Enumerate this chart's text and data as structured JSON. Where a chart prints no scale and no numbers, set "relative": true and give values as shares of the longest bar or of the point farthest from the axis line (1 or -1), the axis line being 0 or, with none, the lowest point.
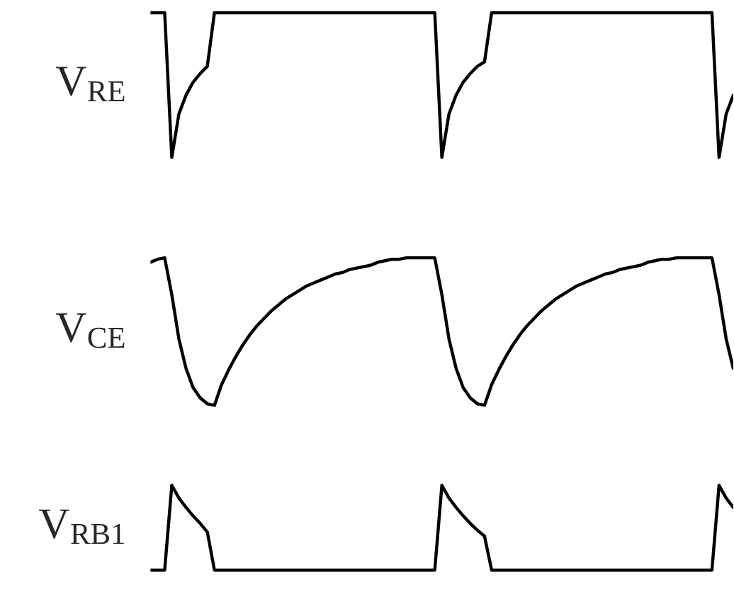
{
  "chart_data": [
    {
      "type": "line",
      "relative": true,
      "ylabel": "V$_{RE}$",
      "categories": [
        null,
        null,
        null,
        null,
        null,
        null,
        null,
        null,
        null,
        null,
        null,
        null,
        null,
        null,
        null,
        null,
        null,
        null,
        null,
        null,
        null,
        null,
        null,
        null,
        null,
        null,
        null,
        null,
        null,
        null,
        null,
        null,
        null,
        null,
        null,
        null,
        null,
        null,
        null,
        null,
        null,
        null,
        null,
        null,
        null,
        null,
        null,
        null,
        null,
        null,
        null,
        null,
        null,
        null,
        null,
        null,
        null,
        null,
        null,
        null,
        null,
        null,
        null,
        null,
        null,
        null,
        null,
        null,
        null,
        null,
        null,
        null,
        null,
        null,
        null,
        null,
        null,
        null,
        null,
        null,
        null,
        null,
        null
      ],
      "series": [
        {
          "color": "#000000",
          "values": [
            1,
            1,
            1,
            0,
            0.3,
            0.43,
            0.52,
            0.58,
            0.63,
            1,
            1,
            1,
            1,
            1,
            1,
            1,
            1,
            1,
            1,
            1,
            1,
            1,
            1,
            1,
            1,
            1,
            1,
            1,
            1,
            1,
            1,
            1,
            1,
            1,
            1,
            1,
            1,
            1,
            1,
            1,
            1,
            0,
            0.3,
            0.43,
            0.52,
            0.58,
            0.63,
            0.66,
            1,
            1,
            1,
            1,
            1,
            1,
            1,
            1,
            1,
            1,
            1,
            1,
            1,
            1,
            1,
            1,
            1,
            1,
            1,
            1,
            1,
            1,
            1,
            1,
            1,
            1,
            1,
            1,
            1,
            1,
            1,
            1,
            0,
            0.3,
            0.43
          ]
        }
      ]
    },
    {
      "type": "line",
      "relative": true,
      "ylabel": "V$_{CE}$",
      "categories": [
        null,
        null,
        null,
        null,
        null,
        null,
        null,
        null,
        null,
        null,
        null,
        null,
        null,
        null,
        null,
        null,
        null,
        null,
        null,
        null,
        null,
        null,
        null,
        null,
        null,
        null,
        null,
        null,
        null,
        null,
        null,
        null,
        null,
        null,
        null,
        null,
        null,
        null,
        null,
        null,
        null,
        null,
        null,
        null,
        null,
        null,
        null,
        null,
        null,
        null,
        null,
        null,
        null,
        null,
        null,
        null,
        null,
        null,
        null,
        null,
        null,
        null,
        null,
        null,
        null,
        null,
        null,
        null,
        null,
        null,
        null,
        null,
        null,
        null,
        null,
        null,
        null,
        null,
        null,
        null,
        null,
        null,
        null
      ],
      "series": [
        {
          "color": "#000000",
          "values": [
            0.97,
            0.99,
            1,
            0.75,
            0.45,
            0.25,
            0.12,
            0.05,
            0.01,
            0,
            0.14,
            0.24,
            0.33,
            0.41,
            0.48,
            0.54,
            0.59,
            0.64,
            0.68,
            0.72,
            0.75,
            0.78,
            0.81,
            0.83,
            0.85,
            0.87,
            0.89,
            0.9,
            0.92,
            0.93,
            0.94,
            0.95,
            0.97,
            0.98,
            0.99,
            0.99,
            1,
            1,
            1,
            1,
            1,
            0.75,
            0.45,
            0.25,
            0.12,
            0.05,
            0.01,
            0,
            0.14,
            0.24,
            0.33,
            0.41,
            0.48,
            0.54,
            0.59,
            0.64,
            0.68,
            0.72,
            0.75,
            0.78,
            0.81,
            0.83,
            0.85,
            0.87,
            0.89,
            0.9,
            0.92,
            0.93,
            0.94,
            0.95,
            0.97,
            0.98,
            0.99,
            0.99,
            1,
            1,
            1,
            1,
            1,
            1,
            0.75,
            0.45,
            0.25
          ]
        }
      ]
    },
    {
      "type": "line",
      "relative": true,
      "ylabel": "V$_{RB1}$",
      "categories": [
        null,
        null,
        null,
        null,
        null,
        null,
        null,
        null,
        null,
        null,
        null,
        null,
        null,
        null,
        null,
        null,
        null,
        null,
        null,
        null,
        null,
        null,
        null,
        null,
        null,
        null,
        null,
        null,
        null,
        null,
        null,
        null,
        null,
        null,
        null,
        null,
        null,
        null,
        null,
        null,
        null,
        null,
        null,
        null,
        null,
        null,
        null,
        null,
        null,
        null,
        null,
        null,
        null,
        null,
        null,
        null,
        null,
        null,
        null,
        null,
        null,
        null,
        null,
        null,
        null,
        null,
        null,
        null,
        null,
        null,
        null,
        null,
        null,
        null,
        null,
        null,
        null,
        null,
        null,
        null,
        null,
        null,
        null
      ],
      "series": [
        {
          "color": "#000000",
          "values": [
            0,
            0,
            0,
            1,
            0.85,
            0.74,
            0.64,
            0.55,
            0.45,
            0,
            0,
            0,
            0,
            0,
            0,
            0,
            0,
            0,
            0,
            0,
            0,
            0,
            0,
            0,
            0,
            0,
            0,
            0,
            0,
            0,
            0,
            0,
            0,
            0,
            0,
            0,
            0,
            0,
            0,
            0,
            0,
            1,
            0.85,
            0.74,
            0.64,
            0.55,
            0.47,
            0.4,
            0,
            0,
            0,
            0,
            0,
            0,
            0,
            0,
            0,
            0,
            0,
            0,
            0,
            0,
            0,
            0,
            0,
            0,
            0,
            0,
            0,
            0,
            0,
            0,
            0,
            0,
            0,
            0,
            0,
            0,
            0,
            0,
            1,
            0.85,
            0.74
          ]
        }
      ]
    }
  ]
}
